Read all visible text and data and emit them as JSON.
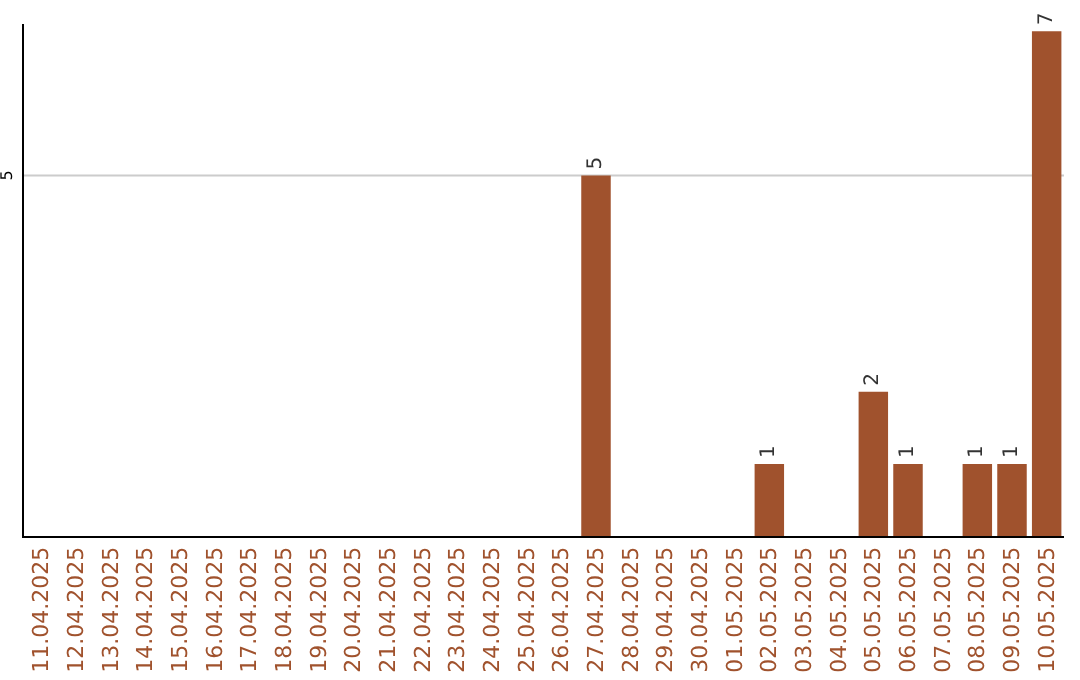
{
  "chart_data": {
    "type": "bar",
    "ylim": [
      0,
      7.1
    ],
    "categories": [
      "11.04.2025",
      "12.04.2025",
      "13.04.2025",
      "14.04.2025",
      "15.04.2025",
      "16.04.2025",
      "17.04.2025",
      "18.04.2025",
      "19.04.2025",
      "20.04.2025",
      "21.04.2025",
      "22.04.2025",
      "23.04.2025",
      "24.04.2025",
      "25.04.2025",
      "26.04.2025",
      "27.04.2025",
      "28.04.2025",
      "29.04.2025",
      "30.04.2025",
      "01.05.2025",
      "02.05.2025",
      "03.05.2025",
      "04.05.2025",
      "05.05.2025",
      "06.05.2025",
      "07.05.2025",
      "08.05.2025",
      "09.05.2025",
      "10.05.2025"
    ],
    "values": [
      null,
      null,
      null,
      null,
      null,
      null,
      null,
      null,
      null,
      null,
      null,
      null,
      null,
      null,
      null,
      null,
      5,
      null,
      null,
      null,
      null,
      1,
      null,
      null,
      2,
      1,
      null,
      1,
      1,
      7
    ],
    "data_labels": true,
    "color": "#a0522d",
    "ref_lines": [
      {
        "axis": "y",
        "value": 5,
        "label": "5",
        "color": "#cccccc"
      }
    ]
  }
}
